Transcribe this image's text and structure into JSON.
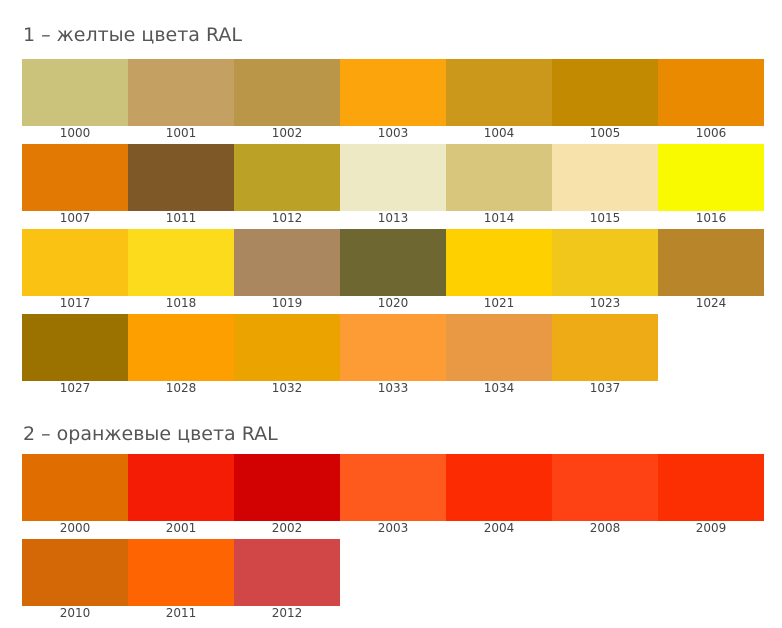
{
  "sections": [
    {
      "title": "1 – желтые цвета RAL",
      "swatches": [
        {
          "code": "1000",
          "color": "#CBC27C"
        },
        {
          "code": "1001",
          "color": "#C4A062"
        },
        {
          "code": "1002",
          "color": "#BA9648"
        },
        {
          "code": "1003",
          "color": "#FBA40C"
        },
        {
          "code": "1004",
          "color": "#CB981B"
        },
        {
          "code": "1005",
          "color": "#C28A00"
        },
        {
          "code": "1006",
          "color": "#E98A00"
        },
        {
          "code": "1007",
          "color": "#E27903"
        },
        {
          "code": "1011",
          "color": "#7F5828"
        },
        {
          "code": "1012",
          "color": "#BBA227"
        },
        {
          "code": "1013",
          "color": "#EDE9C5"
        },
        {
          "code": "1014",
          "color": "#D8C67C"
        },
        {
          "code": "1015",
          "color": "#F6E2AA"
        },
        {
          "code": "1016",
          "color": "#F9F900"
        },
        {
          "code": "1017",
          "color": "#FAC313"
        },
        {
          "code": "1018",
          "color": "#FCDB1C"
        },
        {
          "code": "1019",
          "color": "#AB8760"
        },
        {
          "code": "1020",
          "color": "#6E6732"
        },
        {
          "code": "1021",
          "color": "#FED000"
        },
        {
          "code": "1023",
          "color": "#F2C71C"
        },
        {
          "code": "1024",
          "color": "#B8852A"
        },
        {
          "code": "1027",
          "color": "#9B7200"
        },
        {
          "code": "1028",
          "color": "#FE9F00"
        },
        {
          "code": "1032",
          "color": "#EBA300"
        },
        {
          "code": "1033",
          "color": "#FD9B35"
        },
        {
          "code": "1034",
          "color": "#E99943"
        },
        {
          "code": "1037",
          "color": "#EFAB16"
        }
      ]
    },
    {
      "title": "2 – оранжевые цвета RAL",
      "swatches": [
        {
          "code": "2000",
          "color": "#E06D00"
        },
        {
          "code": "2001",
          "color": "#F41C05"
        },
        {
          "code": "2002",
          "color": "#D20202"
        },
        {
          "code": "2003",
          "color": "#FE5A1E"
        },
        {
          "code": "2004",
          "color": "#FD2B01"
        },
        {
          "code": "2008",
          "color": "#FE4214"
        },
        {
          "code": "2009",
          "color": "#FB2F02"
        },
        {
          "code": "2010",
          "color": "#D56806"
        },
        {
          "code": "2011",
          "color": "#FE6401"
        },
        {
          "code": "2012",
          "color": "#D14646"
        }
      ]
    }
  ]
}
